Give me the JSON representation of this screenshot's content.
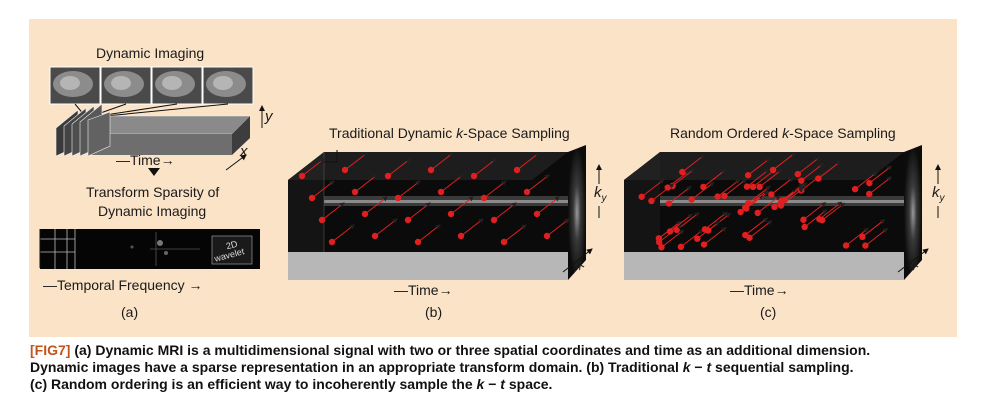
{
  "panel_a": {
    "title": "Dynamic Imaging",
    "time_label": "—Time→",
    "x_label": "x",
    "y_label": "y",
    "sparsity_title_line1": "Transform Sparsity of",
    "sparsity_title_line2": "Dynamic Imaging",
    "box_text_line1": "2D",
    "box_text_line2": "wavelet",
    "freq_label": "—Temporal Frequency →",
    "sub_label": "(a)"
  },
  "panel_b": {
    "title_pre": "Traditional Dynamic ",
    "title_k": "k",
    "title_post": "-Space Sampling",
    "ky_label": "k",
    "ky_sub": "y",
    "x_label": "x",
    "time_label": "—Time→",
    "sub_label": "(b)"
  },
  "panel_c": {
    "title_pre": "Random Ordered ",
    "title_k": "k",
    "title_post": "-Space Sampling",
    "ky_label": "k",
    "ky_sub": "y",
    "x_label": "x",
    "time_label": "—Time→",
    "sub_label": "(c)"
  },
  "caption": {
    "tag": "[FIG7]",
    "line1": " (a) Dynamic MRI is a multidimensional signal with two or three spatial coordinates and time as an additional dimension.",
    "line2a": "Dynamic images have a sparse representation in an appropriate transform domain. (b) Traditional ",
    "line2k": "k",
    "line2mid": " − ",
    "line2t": "t",
    "line2b": " sequential sampling.",
    "line3a": "(c) Random ordering is an efficient way to incoherently sample the ",
    "line3k": "k",
    "line3mid": " − ",
    "line3t": "t",
    "line3b": " space."
  },
  "colors": {
    "panel_bg": "#fbe3c8",
    "sample_red": "#e02020",
    "caption_tag": "#c2531b"
  }
}
